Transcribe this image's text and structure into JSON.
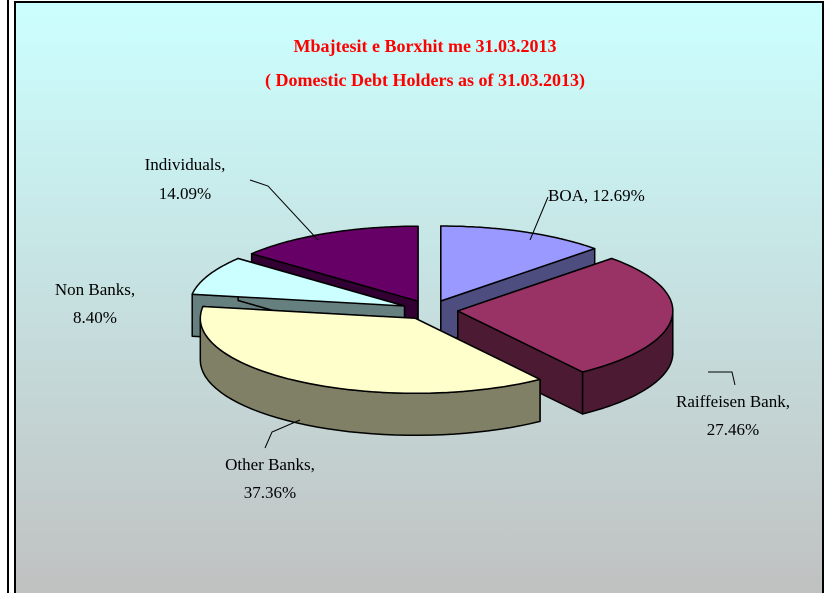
{
  "chart_data": {
    "type": "pie",
    "three_d": true,
    "exploded": true,
    "title": [
      "Mbajtesit e Borxhit me 31.03.2013",
      "( Domestic Debt Holders as of 31.03.2013)"
    ],
    "categories": [
      "BOA",
      "Raiffeisen Bank",
      "Other Banks",
      "Non Banks",
      "Individuals"
    ],
    "values": [
      12.69,
      27.46,
      37.36,
      8.4,
      14.09
    ],
    "value_labels": [
      [
        "BOA, 12.69%"
      ],
      [
        "Raiffeisen Bank,",
        "27.46%"
      ],
      [
        "Other Banks,",
        "37.36%"
      ],
      [
        "Non Banks,",
        "8.40%"
      ],
      [
        "Individuals,",
        "14.09%"
      ]
    ],
    "colors": [
      "#9999ff",
      "#993366",
      "#ffffcc",
      "#ccffff",
      "#660066"
    ]
  }
}
